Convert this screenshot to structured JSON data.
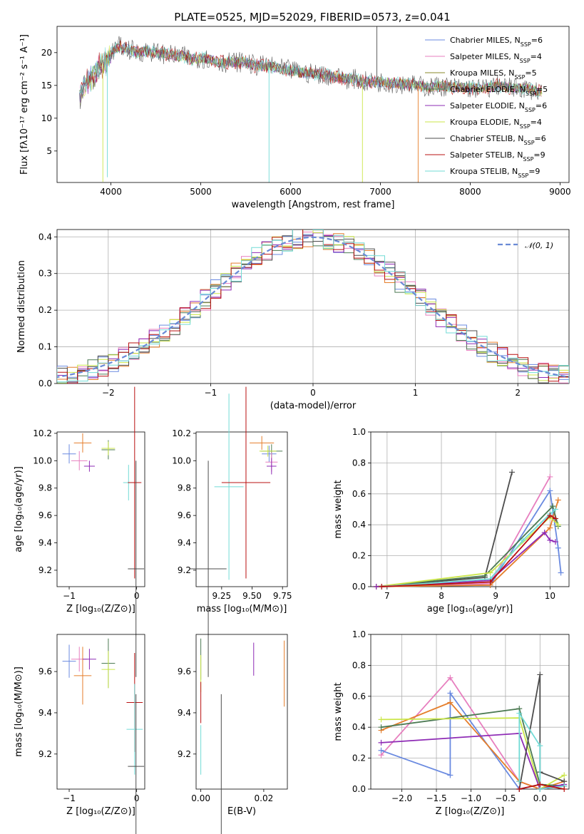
{
  "title": "PLATE=0525, MJD=52029, FIBERID=0573, z=0.041",
  "colors": {
    "Chabrier MILES": "#6a8ae0",
    "Salpeter MILES": "#e77fbf",
    "Kroupa MILES": "#8a8a28",
    "Chabrier ELODIE": "#4c7a53",
    "Salpeter ELODIE": "#8e2bb5",
    "Kroupa ELODIE": "#cbe64a",
    "Chabrier STELIB": "#4d4d4d",
    "Salpeter STELIB": "#b91010",
    "Kroupa STELIB": "#72dbd6",
    "orange": "#e57e2b",
    "normal_curve": "#6a8ad6"
  },
  "chart_data": [
    {
      "type": "line",
      "panel": "spectrum",
      "xlabel": "wavelength [Angstrom, rest frame]",
      "ylabel": "Flux [fλ10⁻¹⁷ erg cm⁻² s⁻¹ A⁻¹]",
      "xlim": [
        3400,
        9100
      ],
      "ylim": [
        0.2,
        24
      ],
      "xticks": [
        "4000",
        "5000",
        "6000",
        "7000",
        "8000",
        "9000"
      ],
      "yticks": [
        "5",
        "10",
        "15",
        "20"
      ],
      "legend": [
        {
          "base": "Chabrier MILES, N",
          "n": "6"
        },
        {
          "base": "Salpeter MILES, N",
          "n": "4"
        },
        {
          "base": "Kroupa MILES, N",
          "n": "5"
        },
        {
          "base": "Chabrier ELODIE, N",
          "n": "5"
        },
        {
          "base": "Salpeter ELODIE, N",
          "n": "6"
        },
        {
          "base": "Kroupa ELODIE, N",
          "n": "4"
        },
        {
          "base": "Chabrier STELIB, N",
          "n": "6"
        },
        {
          "base": "Salpeter STELIB, N",
          "n": "9"
        },
        {
          "base": "Kroupa STELIB, N",
          "n": "9"
        }
      ],
      "legend_sub": "SSP",
      "legend_position": "top-right",
      "envelope": {
        "x": [
          3650,
          3700,
          3800,
          3900,
          4000,
          4100,
          4200,
          4300,
          4400,
          4500,
          4600,
          4700,
          4800,
          4900,
          5000,
          5100,
          5200,
          5300,
          5400,
          5500,
          5600,
          5700,
          5800,
          5900,
          6000,
          6100,
          6200,
          6300,
          6400,
          6500,
          6600,
          6700,
          6800,
          6900,
          7000,
          7100,
          7200,
          7300,
          7400,
          7500,
          7600,
          7700,
          7800,
          7900,
          8000,
          8100,
          8200,
          8300,
          8400,
          8500,
          8600,
          8700,
          8800
        ],
        "y": [
          13.5,
          15.0,
          16.5,
          18.0,
          20.0,
          21.0,
          20.5,
          20.0,
          20.3,
          20.0,
          19.8,
          19.5,
          19.5,
          19.0,
          19.2,
          19.0,
          18.5,
          18.5,
          18.6,
          18.5,
          18.0,
          18.0,
          17.8,
          17.5,
          17.3,
          17.0,
          16.8,
          16.8,
          16.6,
          16.3,
          16.0,
          16.0,
          15.6,
          15.5,
          15.5,
          15.4,
          15.3,
          15.2,
          15.0,
          14.8,
          14.8,
          14.9,
          14.7,
          14.7,
          14.6,
          14.5,
          14.6,
          15.0,
          14.8,
          14.5,
          14.6,
          14.3,
          14.0
        ]
      },
      "spikes": [
        {
          "x": 3910,
          "y": 0.3,
          "series": "Kroupa ELODIE"
        },
        {
          "x": 3960,
          "y": 1.0,
          "series": "Kroupa STELIB"
        },
        {
          "x": 5760,
          "y": 0.2,
          "series": "Kroupa STELIB"
        },
        {
          "x": 6800,
          "y": 0.2,
          "series": "Kroupa ELODIE"
        },
        {
          "x": 6960,
          "y": 24.0,
          "series": "Chabrier STELIB"
        },
        {
          "x": 7420,
          "y": 0.2,
          "series": "orange"
        }
      ]
    },
    {
      "type": "bar",
      "panel": "residual_histogram",
      "xlabel": "(data-model)/error",
      "ylabel": "Normed distribution",
      "xlim": [
        -2.5,
        2.5
      ],
      "ylim": [
        0,
        0.42
      ],
      "xticks": [
        "−2",
        "−1",
        "0",
        "1",
        "2"
      ],
      "yticks": [
        "0.0",
        "0.1",
        "0.2",
        "0.3",
        "0.4"
      ],
      "bin_width": 0.1,
      "legend": "𝒩(0, 1)",
      "legend_position": "top-right",
      "normal_curve": {
        "mean": 0,
        "sigma": 1
      }
    },
    {
      "type": "scatter",
      "panel": "age_vs_Z",
      "xlabel": "Z [log₁₀(Z/Z⊙)]",
      "ylabel": "age  [log₁₀(age/yr)]",
      "xlim": [
        -1.18,
        0.12
      ],
      "ylim": [
        9.08,
        10.21
      ],
      "xticks": [
        "−1",
        "0"
      ],
      "yticks": [
        "9.2",
        "9.4",
        "9.6",
        "9.8",
        "10.0",
        "10.2"
      ],
      "points": [
        {
          "series": "Chabrier MILES",
          "x": -1.0,
          "xerr": 0.1,
          "y": 10.05,
          "yerr": 0.07
        },
        {
          "series": "Salpeter MILES",
          "x": -0.85,
          "xerr": 0.12,
          "y": 10.0,
          "yerr": 0.07
        },
        {
          "series": "orange",
          "x": -0.8,
          "xerr": 0.13,
          "y": 10.13,
          "yerr": 0.07
        },
        {
          "series": "Salpeter ELODIE",
          "x": -0.7,
          "xerr": 0.08,
          "y": 9.96,
          "yerr": 0.04
        },
        {
          "series": "Chabrier ELODIE",
          "x": -0.42,
          "xerr": 0.1,
          "y": 10.08,
          "yerr": 0.07
        },
        {
          "series": "Kroupa ELODIE",
          "x": -0.42,
          "xerr": 0.1,
          "y": 10.09,
          "yerr": 0.05
        },
        {
          "series": "Kroupa STELIB",
          "x": -0.12,
          "xerr": 0.08,
          "y": 9.84,
          "yerr": 0.13
        },
        {
          "series": "Salpeter STELIB",
          "x": -0.03,
          "xerr": 0.1,
          "y": 9.84,
          "yerr": 0.7
        },
        {
          "series": "Chabrier STELIB",
          "x": -0.01,
          "xerr": 0.12,
          "y": 9.21,
          "yerr": 0.79
        }
      ]
    },
    {
      "type": "scatter",
      "panel": "age_vs_mass",
      "xlabel": "mass [log₁₀(M/M⊙)]",
      "ylabel": "",
      "xlim": [
        9.04,
        9.79
      ],
      "ylim": [
        9.08,
        10.21
      ],
      "xticks": [
        "9.25",
        "9.50",
        "9.75"
      ],
      "yticks": [
        "9.2",
        "9.4",
        "9.6",
        "9.8",
        "10.0",
        "10.2"
      ],
      "points": [
        {
          "series": "orange",
          "x": 9.58,
          "xerr": 0.1,
          "y": 10.13,
          "yerr": 0.05
        },
        {
          "series": "Chabrier MILES",
          "x": 9.64,
          "xerr": 0.06,
          "y": 10.05,
          "yerr": 0.06
        },
        {
          "series": "Chabrier ELODIE",
          "x": 9.66,
          "xerr": 0.09,
          "y": 10.07,
          "yerr": 0.05
        },
        {
          "series": "Kroupa ELODIE",
          "x": 9.63,
          "xerr": 0.07,
          "y": 10.07,
          "yerr": 0.04
        },
        {
          "series": "Salpeter MILES",
          "x": 9.66,
          "xerr": 0.05,
          "y": 9.99,
          "yerr": 0.07
        },
        {
          "series": "Salpeter ELODIE",
          "x": 9.66,
          "xerr": 0.04,
          "y": 9.96,
          "yerr": 0.06
        },
        {
          "series": "Kroupa STELIB",
          "x": 9.31,
          "xerr": 0.12,
          "y": 9.81,
          "yerr": 0.68
        },
        {
          "series": "Salpeter STELIB",
          "x": 9.45,
          "xerr": 0.2,
          "y": 9.84,
          "yerr": 0.7
        },
        {
          "series": "Chabrier STELIB",
          "x": 9.14,
          "xerr": 0.15,
          "y": 9.21,
          "yerr": 0.79
        }
      ]
    },
    {
      "type": "line",
      "panel": "mass_weight_vs_age",
      "xlabel": "age  [log₁₀(age/yr)]",
      "ylabel": "mass weight",
      "xlim": [
        6.7,
        10.35
      ],
      "ylim": [
        0,
        1.0
      ],
      "xticks": [
        "7",
        "8",
        "9",
        "10"
      ],
      "yticks": [
        "0.0",
        "0.2",
        "0.4",
        "0.6",
        "0.8",
        "1.0"
      ],
      "series": [
        {
          "name": "Chabrier STELIB",
          "x": [
            6.8,
            8.8,
            9.3
          ],
          "y": [
            0.0,
            0.06,
            0.74
          ]
        },
        {
          "name": "Salpeter MILES",
          "x": [
            6.8,
            8.9,
            10.0
          ],
          "y": [
            0.0,
            0.02,
            0.71
          ]
        },
        {
          "name": "Chabrier MILES",
          "x": [
            6.8,
            8.9,
            10.0,
            10.15,
            10.2
          ],
          "y": [
            0.0,
            0.01,
            0.62,
            0.25,
            0.09
          ]
        },
        {
          "name": "orange",
          "x": [
            6.8,
            8.9,
            10.0,
            10.15
          ],
          "y": [
            0.0,
            0.01,
            0.38,
            0.56
          ]
        },
        {
          "name": "Chabrier ELODIE",
          "x": [
            6.8,
            8.8,
            10.05,
            10.15
          ],
          "y": [
            0.0,
            0.07,
            0.52,
            0.39
          ]
        },
        {
          "name": "Kroupa ELODIE",
          "x": [
            6.8,
            8.9,
            10.0,
            10.15
          ],
          "y": [
            0.0,
            0.09,
            0.45,
            0.4
          ]
        },
        {
          "name": "Salpeter ELODIE",
          "x": [
            6.8,
            8.9,
            9.9,
            10.0,
            10.1
          ],
          "y": [
            0.0,
            0.04,
            0.35,
            0.3,
            0.29
          ]
        },
        {
          "name": "Kroupa STELIB",
          "x": [
            6.9,
            8.9,
            9.5,
            10.0,
            10.1
          ],
          "y": [
            0.0,
            0.05,
            0.3,
            0.47,
            0.5
          ]
        },
        {
          "name": "Salpeter STELIB",
          "x": [
            6.9,
            8.9,
            10.0,
            10.1
          ],
          "y": [
            0.0,
            0.03,
            0.46,
            0.44
          ]
        }
      ]
    },
    {
      "type": "scatter",
      "panel": "mass_vs_Z",
      "xlabel": "Z [log₁₀(Z/Z⊙)]",
      "ylabel": "mass [log₁₀(M/M⊙)]",
      "xlim": [
        -1.18,
        0.12
      ],
      "ylim": [
        9.03,
        9.78
      ],
      "xticks": [
        "−1",
        "0"
      ],
      "yticks": [
        "9.2",
        "9.4",
        "9.6"
      ],
      "points": [
        {
          "series": "Chabrier MILES",
          "x": -1.0,
          "xerr": 0.1,
          "y": 9.65,
          "yerr": 0.08
        },
        {
          "series": "Salpeter MILES",
          "x": -0.85,
          "xerr": 0.12,
          "y": 9.66,
          "yerr": 0.06
        },
        {
          "series": "orange",
          "x": -0.8,
          "xerr": 0.13,
          "y": 9.58,
          "yerr": 0.14
        },
        {
          "series": "Salpeter ELODIE",
          "x": -0.7,
          "xerr": 0.1,
          "y": 9.66,
          "yerr": 0.05
        },
        {
          "series": "Chabrier ELODIE",
          "x": -0.42,
          "xerr": 0.1,
          "y": 9.64,
          "yerr": 0.12
        },
        {
          "series": "Kroupa ELODIE",
          "x": -0.42,
          "xerr": 0.1,
          "y": 9.61,
          "yerr": 0.09
        },
        {
          "series": "Salpeter STELIB",
          "x": -0.03,
          "xerr": 0.12,
          "y": 9.45,
          "yerr": 0.24
        },
        {
          "series": "Kroupa STELIB",
          "x": -0.03,
          "xerr": 0.12,
          "y": 9.32,
          "yerr": 0.22
        },
        {
          "series": "Chabrier STELIB",
          "x": -0.01,
          "xerr": 0.12,
          "y": 9.14,
          "yerr": 0.35
        }
      ]
    },
    {
      "type": "scatter",
      "panel": "mass_vs_EBV",
      "xlabel": "E(B-V)",
      "ylabel": "",
      "xlim": [
        -0.0015,
        0.0275
      ],
      "ylim": [
        9.03,
        9.78
      ],
      "xticks": [
        "0.00",
        "0.02"
      ],
      "yticks": [
        "9.2",
        "9.4",
        "9.6"
      ],
      "points": [
        {
          "series": "Chabrier ELODIE",
          "x": 0.0,
          "xerr": 0,
          "y": 9.66,
          "yerr": 0.1
        },
        {
          "series": "Kroupa ELODIE",
          "x": 0.0,
          "xerr": 0,
          "y": 9.59,
          "yerr": 0.09
        },
        {
          "series": "Salpeter STELIB",
          "x": 0.0,
          "xerr": 0,
          "y": 9.45,
          "yerr": 0.1
        },
        {
          "series": "Kroupa STELIB",
          "x": 0.0,
          "xerr": 0,
          "y": 9.22,
          "yerr": 0.12
        },
        {
          "series": "Chabrier STELIB",
          "x": 0.0065,
          "xerr": 0,
          "y": 9.15,
          "yerr": 0.34
        },
        {
          "series": "Salpeter ELODIE",
          "x": 0.0168,
          "xerr": 0,
          "y": 9.66,
          "yerr": 0.08
        },
        {
          "series": "orange",
          "x": 0.0265,
          "xerr": 0,
          "y": 9.59,
          "yerr": 0.16
        }
      ]
    },
    {
      "type": "line",
      "panel": "mass_weight_vs_Z",
      "xlabel": "Z [log₁₀(Z/Z⊙)]",
      "ylabel": "mass weight",
      "xlim": [
        -2.45,
        0.42
      ],
      "ylim": [
        0,
        1.0
      ],
      "xticks": [
        "−2.0",
        "−1.5",
        "−1.0",
        "−0.5",
        "0.0"
      ],
      "yticks": [
        "0.0",
        "0.2",
        "0.4",
        "0.6",
        "0.8",
        "1.0"
      ],
      "series": [
        {
          "name": "Salpeter MILES",
          "x": [
            -2.3,
            -1.3,
            -0.3,
            0.0,
            0.35
          ],
          "y": [
            0.22,
            0.72,
            0.05,
            0.0,
            0.02
          ]
        },
        {
          "name": "Chabrier MILES",
          "x": [
            -2.3,
            -1.3,
            -1.3,
            -0.3,
            0.0,
            0.35
          ],
          "y": [
            0.25,
            0.09,
            0.62,
            0.0,
            0.03,
            0.02
          ]
        },
        {
          "name": "orange",
          "x": [
            -2.3,
            -1.3,
            -0.3,
            0.0,
            0.35
          ],
          "y": [
            0.38,
            0.56,
            0.05,
            0.0,
            0.05
          ]
        },
        {
          "name": "Chabrier ELODIE",
          "x": [
            -2.3,
            -0.3,
            0.0,
            0.35
          ],
          "y": [
            0.4,
            0.52,
            0.03,
            0.02
          ]
        },
        {
          "name": "Kroupa ELODIE",
          "x": [
            -2.3,
            -0.3,
            0.0,
            0.35
          ],
          "y": [
            0.45,
            0.46,
            0.0,
            0.09
          ]
        },
        {
          "name": "Salpeter ELODIE",
          "x": [
            -2.3,
            -0.3,
            0.0,
            0.35
          ],
          "y": [
            0.3,
            0.36,
            0.0,
            0.03
          ]
        },
        {
          "name": "Chabrier STELIB",
          "x": [
            -0.3,
            0.0,
            0.0,
            0.35
          ],
          "y": [
            0.0,
            0.74,
            0.11,
            0.05
          ]
        },
        {
          "name": "Kroupa STELIB",
          "x": [
            -0.3,
            -0.3,
            0.0,
            0.0,
            0.35
          ],
          "y": [
            0.05,
            0.49,
            0.28,
            0.0,
            0.02
          ]
        },
        {
          "name": "Salpeter STELIB",
          "x": [
            -0.3,
            0.0,
            0.35
          ],
          "y": [
            0.0,
            0.03,
            0.0
          ]
        }
      ]
    }
  ]
}
